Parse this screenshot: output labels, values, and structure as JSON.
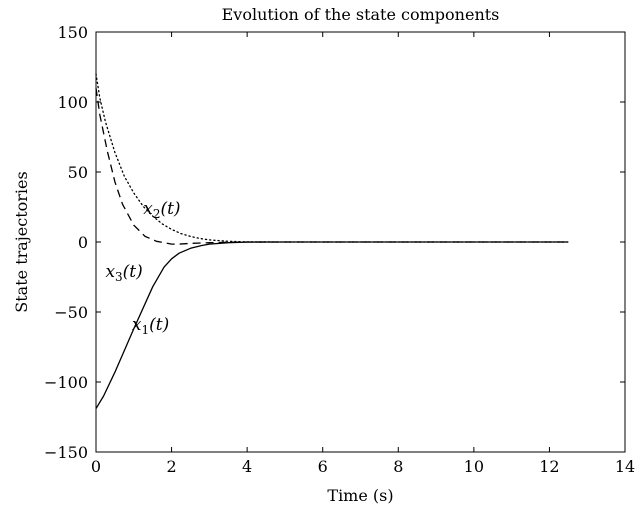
{
  "chart_data": {
    "type": "line",
    "title": "Evolution of the state components",
    "xlabel": "Time (s)",
    "ylabel": "State trajectories",
    "xlim": [
      0,
      14
    ],
    "ylim": [
      -150,
      150
    ],
    "xticks": [
      0,
      2,
      4,
      6,
      8,
      10,
      12,
      14
    ],
    "yticks": [
      -150,
      -100,
      -50,
      0,
      50,
      100,
      150
    ],
    "grid": false,
    "series": [
      {
        "name": "x1(t)",
        "style": "solid",
        "x": [
          0,
          0.2,
          0.5,
          1.0,
          1.5,
          1.8,
          2.0,
          2.2,
          2.5,
          2.8,
          3.0,
          3.5,
          4.0,
          5.0,
          6.0,
          8.0,
          10.0,
          12.5
        ],
        "y": [
          -119,
          -110,
          -93,
          -62,
          -32,
          -18,
          -12,
          -8,
          -4.5,
          -2.5,
          -1.5,
          -0.5,
          -0.1,
          0,
          0,
          0,
          0,
          0
        ]
      },
      {
        "name": "x2(t)",
        "style": "dotted",
        "x": [
          0,
          0.1,
          0.25,
          0.5,
          0.75,
          1.0,
          1.25,
          1.5,
          1.75,
          2.0,
          2.25,
          2.5,
          2.75,
          3.0,
          3.5,
          4.0,
          5.0,
          8.0,
          12.5
        ],
        "y": [
          120,
          103,
          86,
          64,
          47,
          35,
          25.5,
          18.5,
          13,
          9,
          6,
          4,
          2.5,
          1.5,
          0.5,
          0.1,
          0,
          0,
          0
        ]
      },
      {
        "name": "x3(t)",
        "style": "dashed",
        "x": [
          0,
          0.1,
          0.3,
          0.5,
          0.7,
          1.0,
          1.3,
          1.6,
          1.9,
          2.0,
          2.2,
          2.5,
          3.0,
          3.5,
          4.0,
          5.0,
          8.0,
          12.5
        ],
        "y": [
          110,
          91,
          65,
          43,
          27,
          12,
          4,
          0.5,
          -1,
          -1.5,
          -1.5,
          -1,
          -0.5,
          -0.2,
          0,
          0,
          0,
          0
        ]
      }
    ],
    "annotations": [
      {
        "base": "x",
        "sub": "2",
        "suffix": "(t)",
        "x": 1.25,
        "y": 20
      },
      {
        "base": "x",
        "sub": "3",
        "suffix": "(t)",
        "x": 0.25,
        "y": -25
      },
      {
        "base": "x",
        "sub": "1",
        "suffix": "(t)",
        "x": 0.95,
        "y": -63
      }
    ],
    "line_color": "#000000"
  }
}
